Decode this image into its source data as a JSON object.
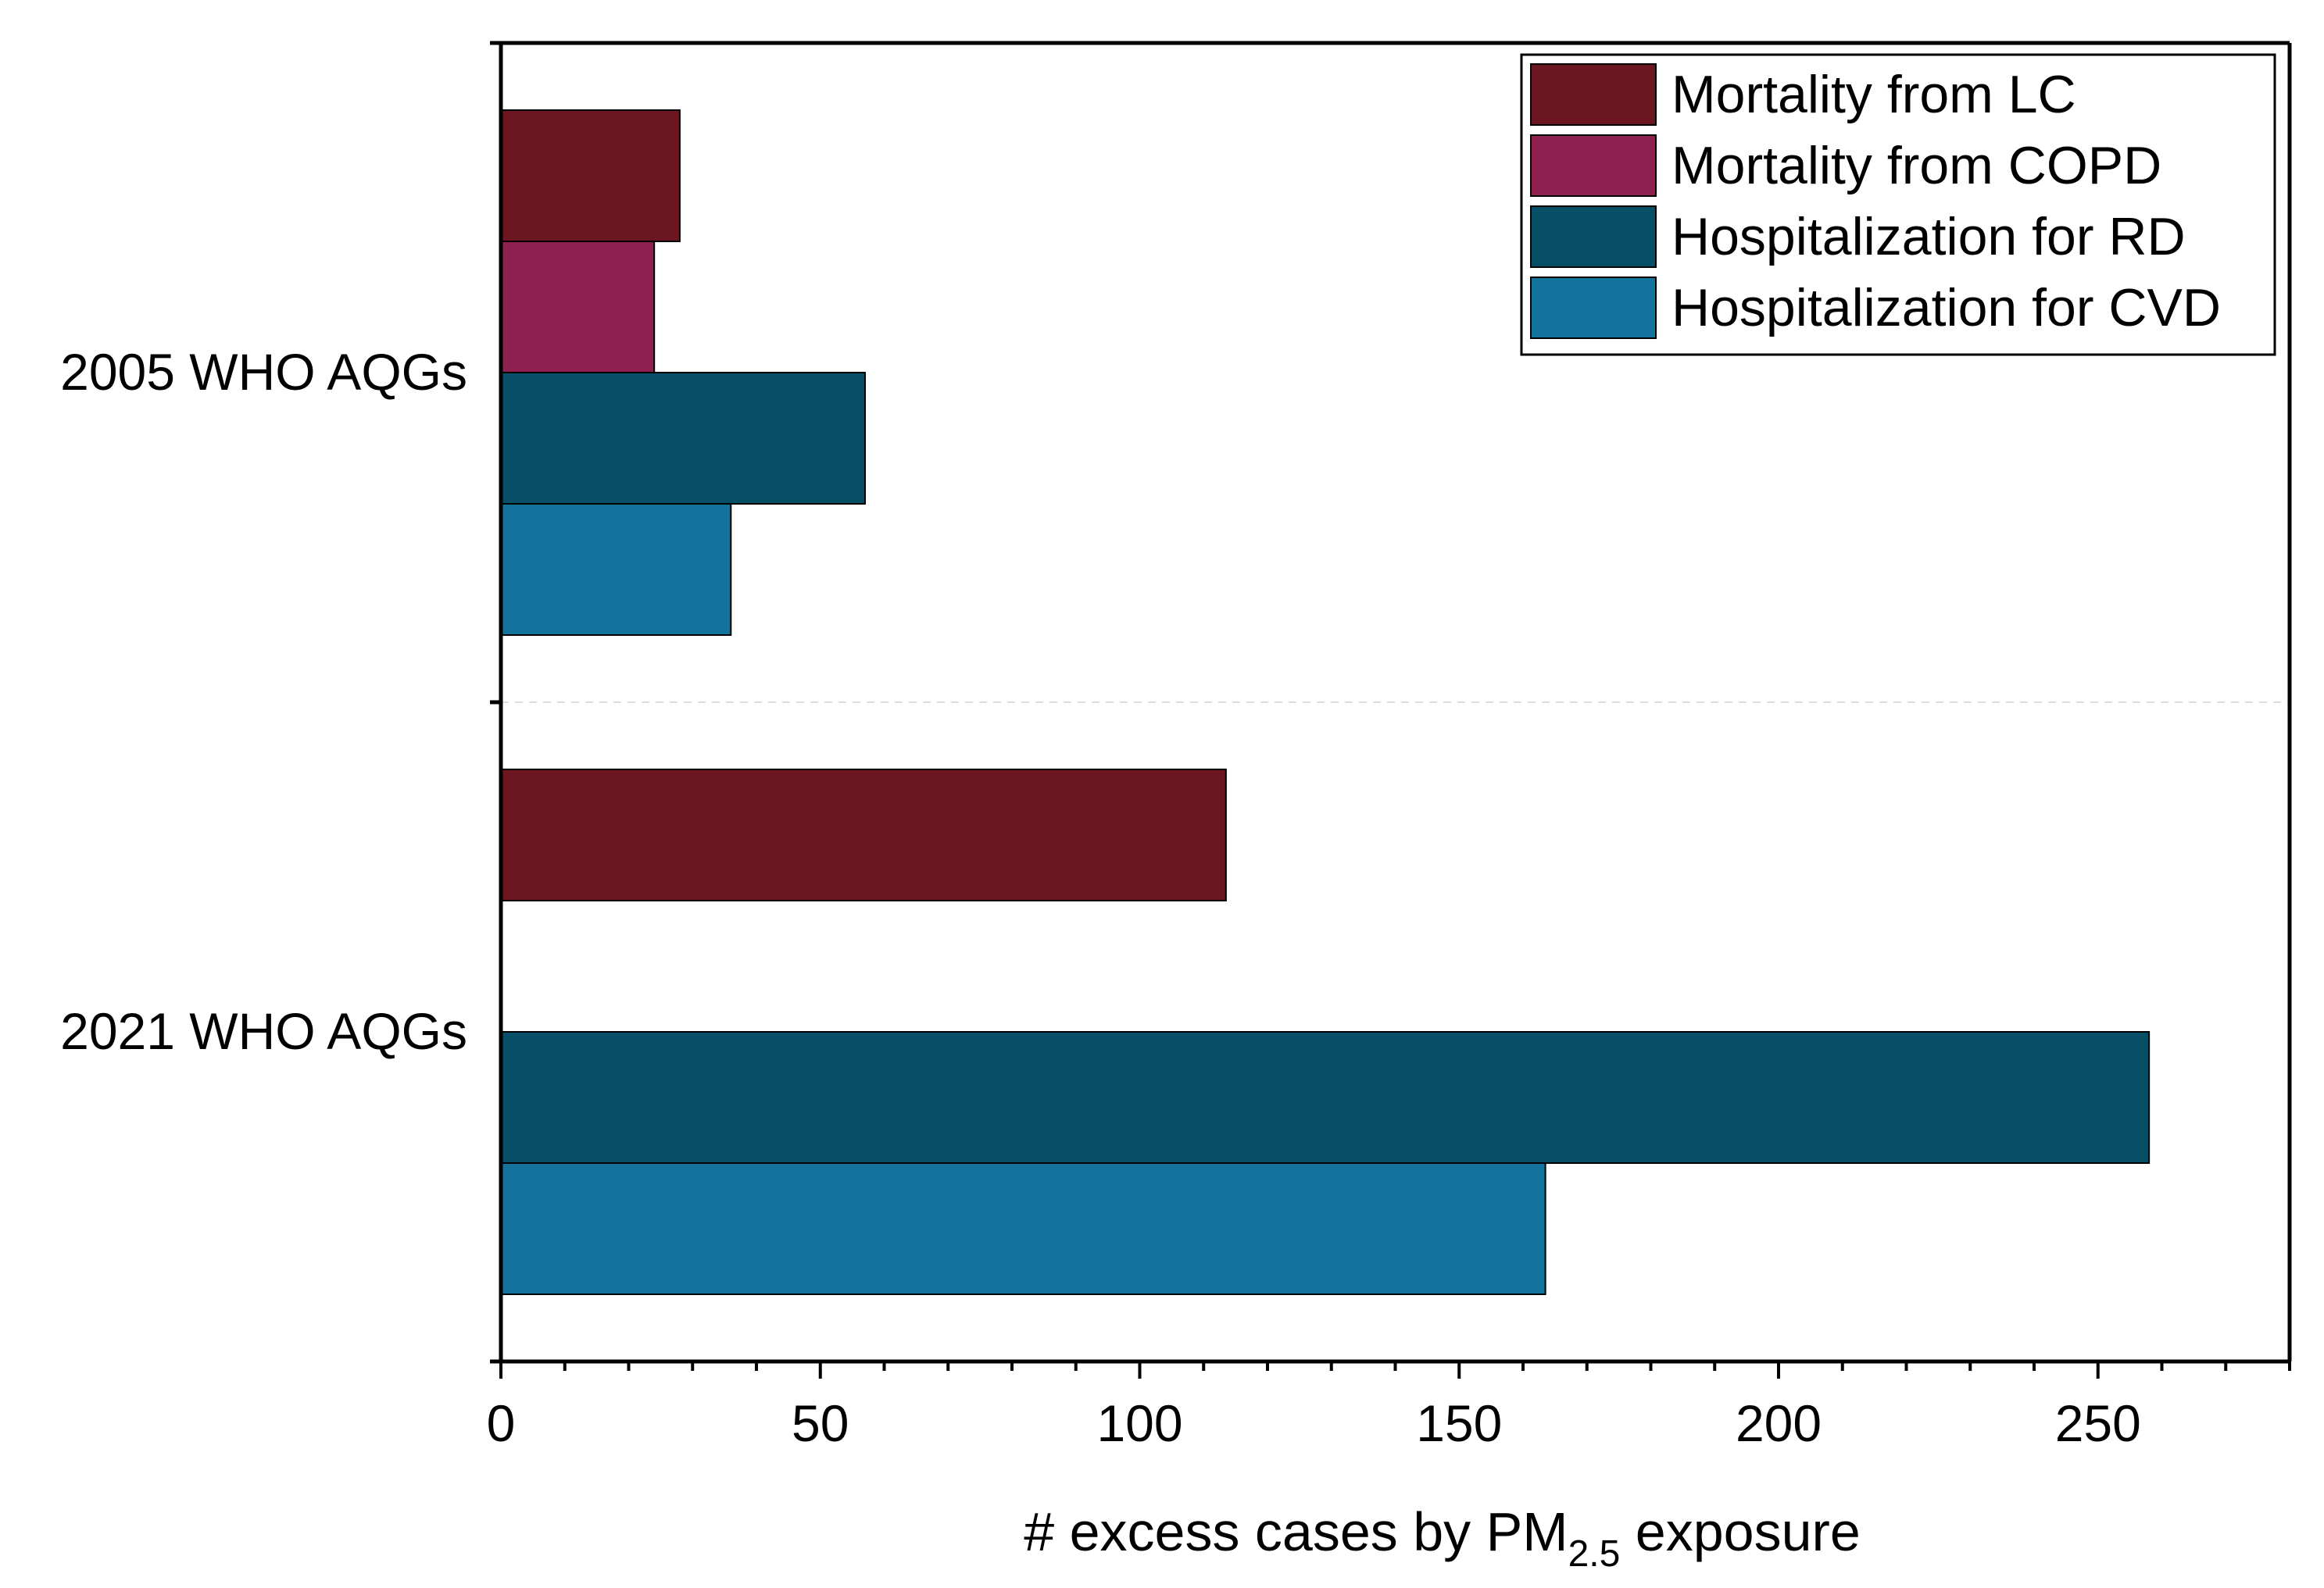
{
  "chart_data": {
    "type": "bar",
    "orientation": "horizontal",
    "title": "",
    "categories": [
      "2005 WHO AQGs",
      "2021 WHO AQGs"
    ],
    "series": [
      {
        "name": "Mortality from LC",
        "color": "#6b1620",
        "values": [
          28,
          113.5
        ]
      },
      {
        "name": "Mortality from COPD",
        "color": "#8f2150",
        "values": [
          24,
          null
        ]
      },
      {
        "name": "Hospitalization for RD",
        "color": "#064f66",
        "values": [
          57,
          258
        ]
      },
      {
        "name": "Hospitalization for CVD",
        "color": "#14739d",
        "values": [
          36,
          163.5
        ]
      }
    ],
    "xlabel": {
      "prefix": "# excess cases by PM",
      "subscript": "2.5",
      "suffix": " exposure"
    },
    "ylabel": "",
    "xlim": [
      0,
      280
    ],
    "x_ticks": [
      0,
      50,
      100,
      150,
      200,
      250
    ],
    "x_tick_labels": [
      "0",
      "50",
      "100",
      "150",
      "200",
      "250"
    ],
    "x_minor_step": 10,
    "legend_position": "top-right",
    "grid": false,
    "category_separator": "dashed"
  }
}
